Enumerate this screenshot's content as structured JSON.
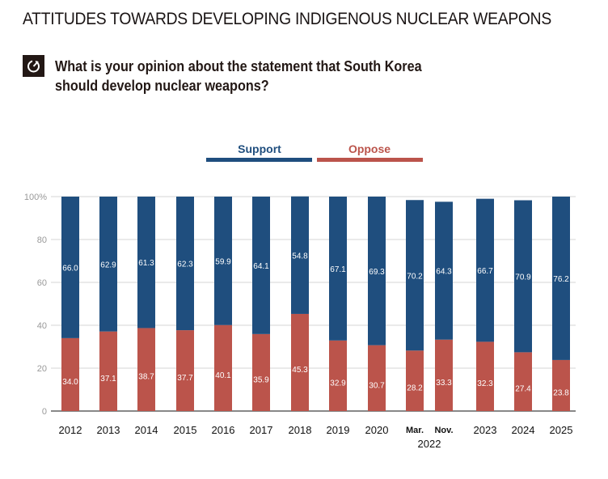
{
  "title": "ATTITUDES TOWARDS DEVELOPING INDIGENOUS NUCLEAR WEAPONS",
  "question_icon": "refresh-icon",
  "question": "What is your opinion about the statement that South Korea should develop nuclear weapons?",
  "chart_data": {
    "type": "bar",
    "stacked": true,
    "title": "What is your opinion about the statement that South Korea should develop nuclear weapons?",
    "xlabel": "",
    "ylabel": "",
    "ylim": [
      0,
      100
    ],
    "yticks": [
      "0",
      "20",
      "40",
      "60",
      "80",
      "100%"
    ],
    "grid": true,
    "legend_position": "top-center",
    "categories": [
      "2012",
      "2013",
      "2014",
      "2015",
      "2016",
      "2017",
      "2018",
      "2019",
      "2020",
      "Mar.",
      "Nov.",
      "2023",
      "2024",
      "2025"
    ],
    "group_label": {
      "text": "2022",
      "categories": [
        "Mar.",
        "Nov."
      ]
    },
    "series": [
      {
        "name": "Oppose",
        "color": "#bb544b",
        "values": [
          34.0,
          37.1,
          38.7,
          37.7,
          40.1,
          35.9,
          45.3,
          32.9,
          30.7,
          28.2,
          33.3,
          32.3,
          27.4,
          23.8
        ]
      },
      {
        "name": "Support",
        "color": "#1f4e7e",
        "values": [
          66.0,
          62.9,
          61.3,
          62.3,
          59.9,
          64.1,
          54.8,
          67.1,
          69.3,
          70.2,
          64.3,
          66.7,
          70.9,
          76.2
        ]
      }
    ]
  }
}
